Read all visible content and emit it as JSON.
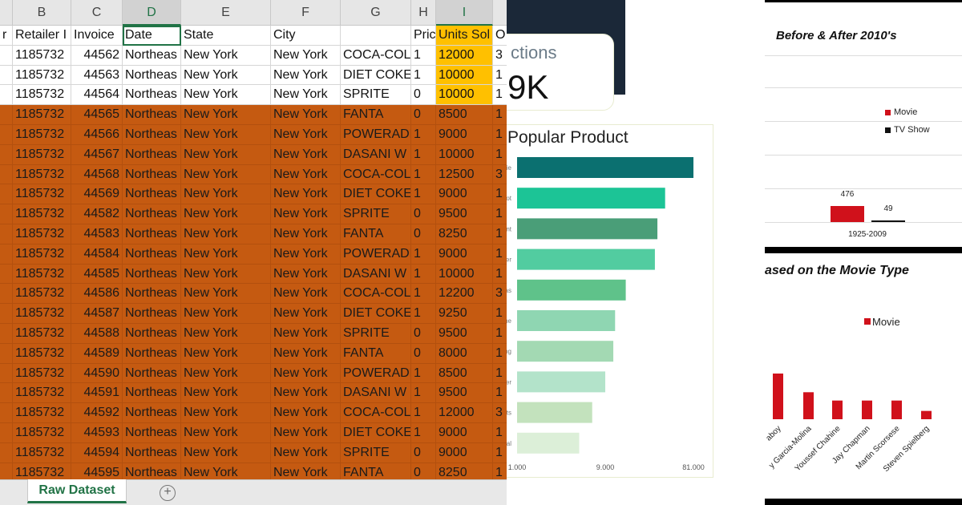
{
  "spreadsheet": {
    "column_letters": [
      "B",
      "C",
      "D",
      "E",
      "F",
      "G",
      "H",
      "I"
    ],
    "header_row": {
      "a": "r",
      "b": "Retailer I",
      "c": "Invoice",
      "d": "Date",
      "e": "State",
      "f": "City",
      "g": "",
      "h": "Pric",
      "i": "Units Sol",
      "j": "O"
    },
    "rows": [
      {
        "b": "1185732",
        "c": "44562",
        "d": "Northeas",
        "e": "New York",
        "f": "New York",
        "g": "COCA-COL",
        "h": "1",
        "i": "12000",
        "j": "3",
        "style": "white",
        "units_highlight": true
      },
      {
        "b": "1185732",
        "c": "44563",
        "d": "Northeas",
        "e": "New York",
        "f": "New York",
        "g": "DIET COKE",
        "h": "1",
        "i": "10000",
        "j": "1",
        "style": "white",
        "units_highlight": true
      },
      {
        "b": "1185732",
        "c": "44564",
        "d": "Northeas",
        "e": "New York",
        "f": "New York",
        "g": "SPRITE",
        "h": "0",
        "i": "10000",
        "j": "1",
        "style": "white",
        "units_highlight": true
      },
      {
        "b": "1185732",
        "c": "44565",
        "d": "Northeas",
        "e": "New York",
        "f": "New York",
        "g": "FANTA",
        "h": "0",
        "i": "8500",
        "j": "1",
        "style": "orange"
      },
      {
        "b": "1185732",
        "c": "44566",
        "d": "Northeas",
        "e": "New York",
        "f": "New York",
        "g": "POWERADE",
        "h": "1",
        "i": "9000",
        "j": "1",
        "style": "orange"
      },
      {
        "b": "1185732",
        "c": "44567",
        "d": "Northeas",
        "e": "New York",
        "f": "New York",
        "g": "DASANI W",
        "h": "1",
        "i": "10000",
        "j": "1",
        "style": "orange"
      },
      {
        "b": "1185732",
        "c": "44568",
        "d": "Northeas",
        "e": "New York",
        "f": "New York",
        "g": "COCA-COL",
        "h": "1",
        "i": "12500",
        "j": "3",
        "style": "orange"
      },
      {
        "b": "1185732",
        "c": "44569",
        "d": "Northeas",
        "e": "New York",
        "f": "New York",
        "g": "DIET COKE",
        "h": "1",
        "i": "9000",
        "j": "1",
        "style": "orange"
      },
      {
        "b": "1185732",
        "c": "44582",
        "d": "Northeas",
        "e": "New York",
        "f": "New York",
        "g": "SPRITE",
        "h": "0",
        "i": "9500",
        "j": "1",
        "style": "orange"
      },
      {
        "b": "1185732",
        "c": "44583",
        "d": "Northeas",
        "e": "New York",
        "f": "New York",
        "g": "FANTA",
        "h": "0",
        "i": "8250",
        "j": "1",
        "style": "orange"
      },
      {
        "b": "1185732",
        "c": "44584",
        "d": "Northeas",
        "e": "New York",
        "f": "New York",
        "g": "POWERADE",
        "h": "1",
        "i": "9000",
        "j": "1",
        "style": "orange"
      },
      {
        "b": "1185732",
        "c": "44585",
        "d": "Northeas",
        "e": "New York",
        "f": "New York",
        "g": "DASANI W",
        "h": "1",
        "i": "10000",
        "j": "1",
        "style": "orange"
      },
      {
        "b": "1185732",
        "c": "44586",
        "d": "Northeas",
        "e": "New York",
        "f": "New York",
        "g": "COCA-COL",
        "h": "1",
        "i": "12200",
        "j": "3",
        "style": "orange"
      },
      {
        "b": "1185732",
        "c": "44587",
        "d": "Northeas",
        "e": "New York",
        "f": "New York",
        "g": "DIET COKE",
        "h": "1",
        "i": "9250",
        "j": "1",
        "style": "orange"
      },
      {
        "b": "1185732",
        "c": "44588",
        "d": "Northeas",
        "e": "New York",
        "f": "New York",
        "g": "SPRITE",
        "h": "0",
        "i": "9500",
        "j": "1",
        "style": "orange"
      },
      {
        "b": "1185732",
        "c": "44589",
        "d": "Northeas",
        "e": "New York",
        "f": "New York",
        "g": "FANTA",
        "h": "0",
        "i": "8000",
        "j": "1",
        "style": "orange"
      },
      {
        "b": "1185732",
        "c": "44590",
        "d": "Northeas",
        "e": "New York",
        "f": "New York",
        "g": "POWERADE",
        "h": "1",
        "i": "8500",
        "j": "1",
        "style": "orange"
      },
      {
        "b": "1185732",
        "c": "44591",
        "d": "Northeas",
        "e": "New York",
        "f": "New York",
        "g": "DASANI W",
        "h": "1",
        "i": "9500",
        "j": "1",
        "style": "orange"
      },
      {
        "b": "1185732",
        "c": "44592",
        "d": "Northeas",
        "e": "New York",
        "f": "New York",
        "g": "COCA-COL",
        "h": "1",
        "i": "12000",
        "j": "3",
        "style": "orange"
      },
      {
        "b": "1185732",
        "c": "44593",
        "d": "Northeas",
        "e": "New York",
        "f": "New York",
        "g": "DIET COKE",
        "h": "1",
        "i": "9000",
        "j": "1",
        "style": "orange"
      },
      {
        "b": "1185732",
        "c": "44594",
        "d": "Northeas",
        "e": "New York",
        "f": "New York",
        "g": "SPRITE",
        "h": "0",
        "i": "9000",
        "j": "1",
        "style": "orange"
      },
      {
        "b": "1185732",
        "c": "44595",
        "d": "Northeas",
        "e": "New York",
        "f": "New York",
        "g": "FANTA",
        "h": "0",
        "i": "8250",
        "j": "1",
        "style": "orange"
      }
    ],
    "sheet_tab": "Raw Dataset",
    "add_sheet_glyph": "+",
    "colors": {
      "orange_fill": "#c55a11",
      "units_highlight": "#ffc000",
      "excel_green": "#217346"
    }
  },
  "dashboard": {
    "kpi": {
      "label": "ctions",
      "value": "9K"
    },
    "popular_product": {
      "title": "Popular Product"
    }
  },
  "before_after": {
    "title": "Before & After 2010's"
  },
  "movie_type": {
    "title": "ased on the Movie Type"
  },
  "chart_data": [
    {
      "type": "bar",
      "orientation": "horizontal",
      "title": "Popular Product",
      "categories": [
        "rdie",
        "pot",
        "ent",
        "der",
        "mas",
        "ome",
        "ting",
        "Tier",
        "ghts",
        "nual"
      ],
      "values": [
        81000,
        40000,
        33000,
        31000,
        15000,
        11500,
        11000,
        9000,
        6500,
        4700
      ],
      "x_scale": "log",
      "x_ticks": [
        "1.000",
        "9.000",
        "81.000"
      ],
      "xlim": [
        1000,
        81000
      ],
      "colors": [
        "#0b7070",
        "#1cc496",
        "#4a9e78",
        "#52cca0",
        "#5fc28a",
        "#8fd6b2",
        "#a3d9b3",
        "#b3e3ca",
        "#c3e2bd",
        "#dcefd8"
      ]
    },
    {
      "type": "bar",
      "title": "Before & After 2010's",
      "categories": [
        "1925-2009"
      ],
      "series": [
        {
          "name": "Movie",
          "values": [
            476
          ],
          "color": "#d0111b"
        },
        {
          "name": "TV Show",
          "values": [
            49
          ],
          "color": "#111111"
        }
      ],
      "legend": "right"
    },
    {
      "type": "bar",
      "title": "ased on the Movie Type",
      "categories": [
        "aboy",
        "y Garcia-Molina",
        "Youssef Chahine",
        "Jay Chapman",
        "Martin Scorsese",
        "Steven Spielberg"
      ],
      "series": [
        {
          "name": "Movie",
          "values": [
            22,
            13,
            9,
            9,
            9,
            4
          ],
          "color": "#d0111b"
        }
      ],
      "legend": "top-right"
    }
  ]
}
